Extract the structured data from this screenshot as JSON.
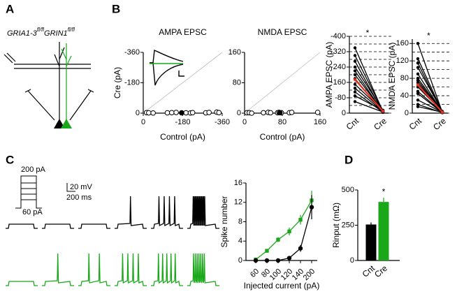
{
  "panel_labels": [
    "A",
    "B",
    "C",
    "D"
  ],
  "genotype": [
    {
      "gene": "GRIA1-3",
      "allele": "fl/fl"
    },
    {
      "gene": "GRIN1",
      "allele": "fl/fl"
    }
  ],
  "traces": {
    "step_top": "200 pA",
    "step_bottom": "60 pA",
    "scale_voltage": "20 mV",
    "scale_time": "200 ms"
  },
  "chart_data": [
    {
      "type": "scatter",
      "title": "AMPA EPSC",
      "x_label": "Control (pA)",
      "y_label": "Cre (pA)",
      "xlim": [
        0,
        -360
      ],
      "ylim": [
        0,
        -360
      ],
      "xticks": [
        0,
        -180,
        -360
      ],
      "yticks": [
        0,
        -180,
        -360
      ],
      "series": [
        {
          "color": "#ffffff",
          "x": [
            -15,
            -25,
            -45,
            -110,
            -130,
            -150,
            -195,
            -215,
            -225,
            -285,
            -300,
            -335,
            -345
          ],
          "values": [
            -3,
            -2,
            -1,
            -2,
            -3,
            -4,
            -2,
            -1,
            -3,
            -2,
            -4,
            -6,
            -3
          ]
        },
        {
          "color": "#000000",
          "x": [
            -175
          ],
          "values": [
            -2
          ]
        }
      ]
    },
    {
      "type": "scatter",
      "title": "NMDA EPSC",
      "x_label": "Control (pA)",
      "xlim": [
        0,
        160
      ],
      "ylim": [
        0,
        160
      ],
      "xticks": [
        0,
        80,
        160
      ],
      "yticks": [
        0,
        80,
        160
      ],
      "series": [
        {
          "color": "#ffffff",
          "x": [
            5,
            10,
            15,
            40,
            50,
            55,
            70,
            73,
            78,
            95,
            100,
            155
          ],
          "values": [
            1,
            1,
            0,
            1,
            2,
            1,
            1,
            2,
            1,
            1,
            2,
            2
          ]
        },
        {
          "color": "#000000",
          "x": [
            75
          ],
          "values": [
            1
          ]
        }
      ]
    },
    {
      "type": "paired",
      "y_label": "AMPA EPSC (pA)",
      "categories": [
        "Cnt",
        "Cre"
      ],
      "annotation": "*",
      "ylim": [
        0,
        -400
      ],
      "yticks": [
        0,
        -80,
        -160,
        -240,
        -320,
        -400
      ],
      "minor_yticks": [
        -40,
        -120,
        -200,
        -280,
        -360
      ],
      "series": [
        {
          "color": "#000000",
          "values": [
            -340,
            -8
          ]
        },
        {
          "color": "#000000",
          "values": [
            -300,
            -12
          ]
        },
        {
          "color": "#000000",
          "values": [
            -270,
            -5
          ]
        },
        {
          "color": "#000000",
          "values": [
            -240,
            -15
          ]
        },
        {
          "color": "#000000",
          "values": [
            -220,
            -6
          ]
        },
        {
          "color": "#000000",
          "values": [
            -200,
            -10
          ]
        },
        {
          "color": "#000000",
          "values": [
            -180,
            -4
          ]
        },
        {
          "color": "#000000",
          "values": [
            -150,
            -12
          ]
        },
        {
          "color": "#000000",
          "values": [
            -130,
            -8
          ]
        },
        {
          "color": "#000000",
          "values": [
            -110,
            -5
          ]
        },
        {
          "color": "#000000",
          "values": [
            -90,
            -14
          ]
        },
        {
          "color": "#000000",
          "values": [
            -60,
            -6
          ]
        },
        {
          "color": "#e03020",
          "values": [
            -175,
            -10
          ]
        }
      ]
    },
    {
      "type": "paired",
      "y_label": "NMDA EPSC (pA)",
      "categories": [
        "Cnt",
        "Cre"
      ],
      "annotation": "*",
      "ylim": [
        0,
        170
      ],
      "yticks": [
        0,
        40,
        80,
        120,
        160
      ],
      "minor_yticks": [
        20,
        60,
        100,
        140
      ],
      "series": [
        {
          "color": "#000000",
          "values": [
            160,
            2
          ]
        },
        {
          "color": "#000000",
          "values": [
            125,
            3
          ]
        },
        {
          "color": "#000000",
          "values": [
            115,
            1
          ]
        },
        {
          "color": "#000000",
          "values": [
            105,
            4
          ]
        },
        {
          "color": "#000000",
          "values": [
            90,
            2
          ]
        },
        {
          "color": "#000000",
          "values": [
            80,
            3
          ]
        },
        {
          "color": "#000000",
          "values": [
            75,
            1
          ]
        },
        {
          "color": "#000000",
          "values": [
            70,
            2
          ]
        },
        {
          "color": "#000000",
          "values": [
            60,
            3
          ]
        },
        {
          "color": "#000000",
          "values": [
            50,
            2
          ]
        },
        {
          "color": "#000000",
          "values": [
            45,
            1
          ]
        },
        {
          "color": "#000000",
          "values": [
            30,
            2
          ]
        },
        {
          "color": "#000000",
          "values": [
            20,
            1
          ]
        },
        {
          "color": "#000000",
          "values": [
            15,
            2
          ]
        },
        {
          "color": "#e03020",
          "values": [
            65,
            2
          ]
        }
      ]
    },
    {
      "type": "line",
      "x_label": "Injected current (pA)",
      "y_label": "Spike number",
      "categories": [
        "60",
        "80",
        "100",
        "120",
        "140",
        "200"
      ],
      "ylim": [
        0,
        16
      ],
      "yticks": [
        0,
        4,
        8,
        12,
        16
      ],
      "series": [
        {
          "color": "#1aa81a",
          "marker": "square",
          "values": [
            0.2,
            2,
            4.3,
            6,
            8.4,
            12.4
          ],
          "errors": [
            0.3,
            0.4,
            0.5,
            0.8,
            1,
            2
          ]
        },
        {
          "color": "#000000",
          "marker": "circle",
          "values": [
            0,
            0,
            0,
            0.5,
            2.5,
            11
          ],
          "errors": [
            0,
            0,
            0,
            0.2,
            0.7,
            2.5
          ]
        }
      ]
    },
    {
      "type": "bar",
      "y_label": "Rinput (mΩ)",
      "categories": [
        "Cnt",
        "Cre"
      ],
      "annotation": "*",
      "values": [
        255,
        415
      ],
      "errors": [
        15,
        30
      ],
      "colors": [
        "#000000",
        "#1aa81a"
      ],
      "ylim": [
        0,
        500
      ],
      "yticks": [
        0,
        250,
        500
      ]
    }
  ]
}
